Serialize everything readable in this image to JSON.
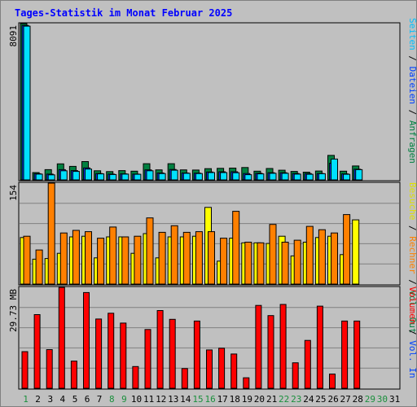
{
  "title": "Tages-Statistik im Monat Februar 2025",
  "colors": {
    "title": "#0000ff",
    "anfragen": "#008040",
    "dateien": "#0040ff",
    "seiten": "#00e0ff",
    "besuche": "#ffff00",
    "rechner": "#ff8000",
    "volumen": "#ff0000",
    "weekday_label": "#008040",
    "weekend_label": "#1a8f3c",
    "grid": "#808080",
    "panel_bg": "#c0c0c0"
  },
  "right_labels": {
    "top": [
      {
        "text": "Seiten",
        "color": "#00c0ff"
      },
      {
        "text": " / ",
        "color": "#000000"
      },
      {
        "text": "Dateien",
        "color": "#0040ff"
      },
      {
        "text": " / ",
        "color": "#000000"
      },
      {
        "text": "Anfragen",
        "color": "#008040"
      }
    ],
    "middle": [
      {
        "text": "Besuche",
        "color": "#e0e000"
      },
      {
        "text": " / ",
        "color": "#000000"
      },
      {
        "text": "Rechner",
        "color": "#ff8000"
      },
      {
        "text": " / ",
        "color": "#000000"
      },
      {
        "text": "Vol. Out",
        "color": "#008040"
      }
    ],
    "bottom": [
      {
        "text": "Volumen",
        "color": "#ff0000"
      },
      {
        "text": " / ",
        "color": "#000000"
      },
      {
        "text": "Vol. In",
        "color": "#0040ff"
      }
    ]
  },
  "chart_data": {
    "type": "bar",
    "title": "Tages-Statistik im Monat Februar 2025",
    "x": [
      1,
      2,
      3,
      4,
      5,
      6,
      7,
      8,
      9,
      10,
      11,
      12,
      13,
      14,
      15,
      16,
      17,
      18,
      19,
      20,
      21,
      22,
      23,
      24,
      25,
      26,
      27,
      28,
      29,
      30,
      31
    ],
    "x_label_weekend": [
      1,
      8,
      9,
      15,
      16,
      22,
      23,
      29,
      30
    ],
    "panels": [
      {
        "name": "hits",
        "ymax_label": "8091",
        "ymax": 8091,
        "series": [
          {
            "name": "Anfragen",
            "values": [
              8091,
              380,
              530,
              830,
              700,
              950,
              470,
              430,
              480,
              450,
              840,
              520,
              840,
              520,
              510,
              580,
              600,
              610,
              640,
              450,
              590,
              500,
              440,
              400,
              460,
              1270,
              450,
              720,
              null,
              null,
              null
            ]
          },
          {
            "name": "Dateien",
            "values": [
              8000,
              320,
              300,
              530,
              480,
              620,
              330,
              300,
              310,
              300,
              520,
              360,
              540,
              360,
              350,
              410,
              420,
              420,
              330,
              340,
              370,
              370,
              330,
              330,
              330,
              860,
              310,
              550,
              null,
              null,
              null
            ]
          },
          {
            "name": "Seiten",
            "values": [
              7960,
              300,
              260,
              470,
              440,
              560,
              310,
              280,
              300,
              290,
              470,
              330,
              500,
              340,
              330,
              380,
              380,
              370,
              270,
              310,
              340,
              340,
              300,
              290,
              320,
              1080,
              290,
              530,
              null,
              null,
              null
            ]
          }
        ]
      },
      {
        "name": "visits",
        "ymax_label": "154",
        "ymax": 154,
        "series": [
          {
            "name": "Besuche",
            "values": [
              71,
              38,
              39,
              47,
              72,
              73,
              40,
              72,
              72,
              47,
              77,
              40,
              72,
              72,
              73,
              117,
              35,
              70,
              63,
              63,
              62,
              73,
              43,
              64,
              71,
              73,
              45,
              98,
              null,
              null,
              null
            ]
          },
          {
            "name": "Rechner",
            "values": [
              73,
              52,
              154,
              78,
              82,
              80,
              70,
              87,
              72,
              73,
              101,
              79,
              89,
              79,
              80,
              80,
              70,
              111,
              64,
              63,
              91,
              64,
              67,
              88,
              83,
              78,
              106,
              null,
              null,
              null,
              null
            ]
          }
        ]
      },
      {
        "name": "volume",
        "ymax_label": "29.73 MB",
        "ymax": 29.73,
        "series": [
          {
            "name": "Volumen",
            "values": [
              10.8,
              21.7,
              11.4,
              29.7,
              8,
              28.2,
              20.4,
              22.1,
              19.2,
              6.4,
              17.3,
              22.9,
              20.3,
              5.8,
              19.8,
              11.3,
              11.8,
              10.1,
              3.1,
              24.4,
              21.4,
              24.7,
              7.5,
              14.1,
              24.2,
              4.2,
              19.8,
              19.8,
              null,
              null,
              null
            ]
          }
        ]
      }
    ]
  }
}
